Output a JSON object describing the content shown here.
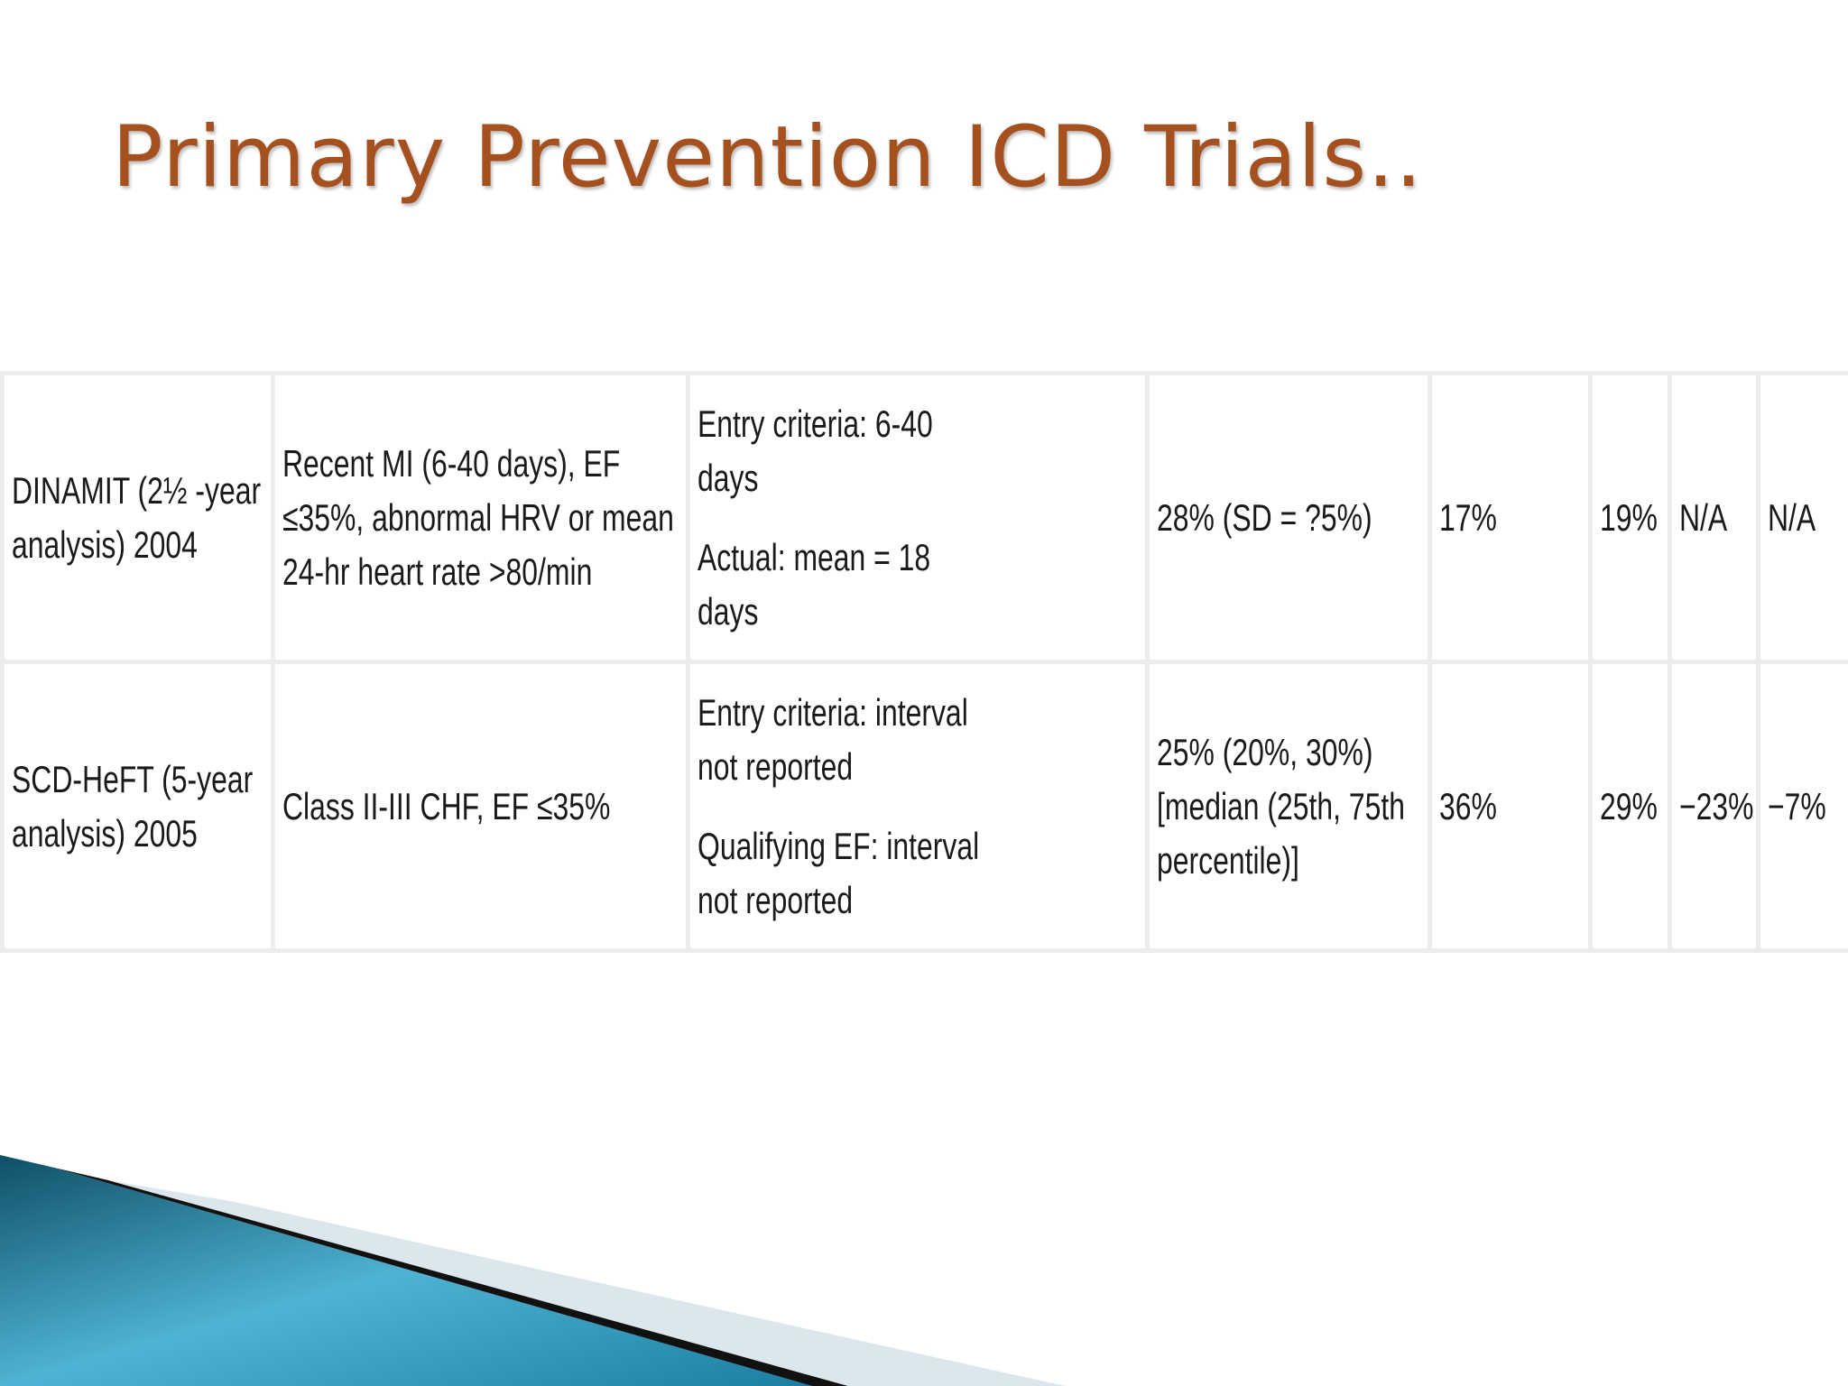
{
  "title": "Primary Prevention ICD Trials..",
  "table": {
    "rows": [
      [
        [
          "DINAMIT (2½ -year analysis) 2004"
        ],
        [
          "Recent MI (6-40 days), EF ≤35%, abnormal HRV or mean 24-hr heart rate >80/min"
        ],
        [
          "Entry criteria: 6-40 days",
          "Actual: mean = 18 days"
        ],
        [
          "28% (SD = ?5%)"
        ],
        [
          "17%"
        ],
        [
          "19%"
        ],
        [
          "N/A"
        ],
        [
          "N/A"
        ]
      ],
      [
        [
          "SCD-HeFT (5-year analysis) 2005"
        ],
        [
          "Class II-III CHF, EF ≤35%"
        ],
        [
          "Entry criteria: interval not reported",
          "Qualifying EF: interval not reported"
        ],
        [
          "25% (20%, 30%) [median (25th, 75th percentile)]"
        ],
        [
          "36%"
        ],
        [
          "29%"
        ],
        [
          "−23%"
        ],
        [
          "−7%"
        ]
      ]
    ]
  }
}
